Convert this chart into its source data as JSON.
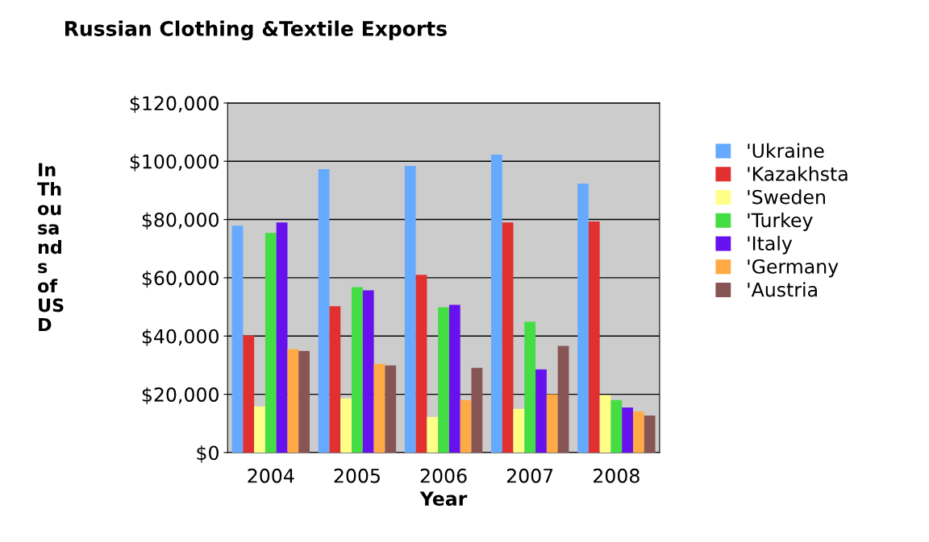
{
  "chart_data": {
    "type": "bar",
    "title": "Russian Clothing &Textile Exports",
    "xlabel": "Year",
    "ylabel": "In Thousands of USD",
    "categories": [
      "2004",
      "2005",
      "2006",
      "2007",
      "2008"
    ],
    "series": [
      {
        "name": "'Ukraine",
        "color": "#66aaff",
        "values": [
          77900,
          97300,
          98400,
          102300,
          92300
        ]
      },
      {
        "name": "'Kazakhsta",
        "color": "#e03030",
        "values": [
          40200,
          50200,
          61000,
          79000,
          79300
        ]
      },
      {
        "name": "'Sweden",
        "color": "#ffff88",
        "values": [
          15800,
          18600,
          12200,
          15000,
          19700
        ]
      },
      {
        "name": "'Turkey",
        "color": "#44dd44",
        "values": [
          75400,
          56800,
          49900,
          44900,
          18000
        ]
      },
      {
        "name": "'Italy",
        "color": "#6611ee",
        "values": [
          79000,
          55700,
          50700,
          28500,
          15500
        ]
      },
      {
        "name": "'Germany",
        "color": "#ffaa44",
        "values": [
          35500,
          30500,
          18000,
          20000,
          14100
        ]
      },
      {
        "name": "'Austria",
        "color": "#885555",
        "values": [
          34900,
          29900,
          29100,
          36600,
          12700
        ]
      }
    ],
    "ylim": [
      0,
      120000
    ],
    "yticks": [
      {
        "value": 0,
        "label": "$0"
      },
      {
        "value": 20000,
        "label": "$20,000"
      },
      {
        "value": 40000,
        "label": "$40,000"
      },
      {
        "value": 60000,
        "label": "$60,000"
      },
      {
        "value": 80000,
        "label": "$80,000"
      },
      {
        "value": 100000,
        "label": "$100,000"
      },
      {
        "value": 120000,
        "label": "$120,000"
      }
    ],
    "grid": "y",
    "legend": "right"
  }
}
